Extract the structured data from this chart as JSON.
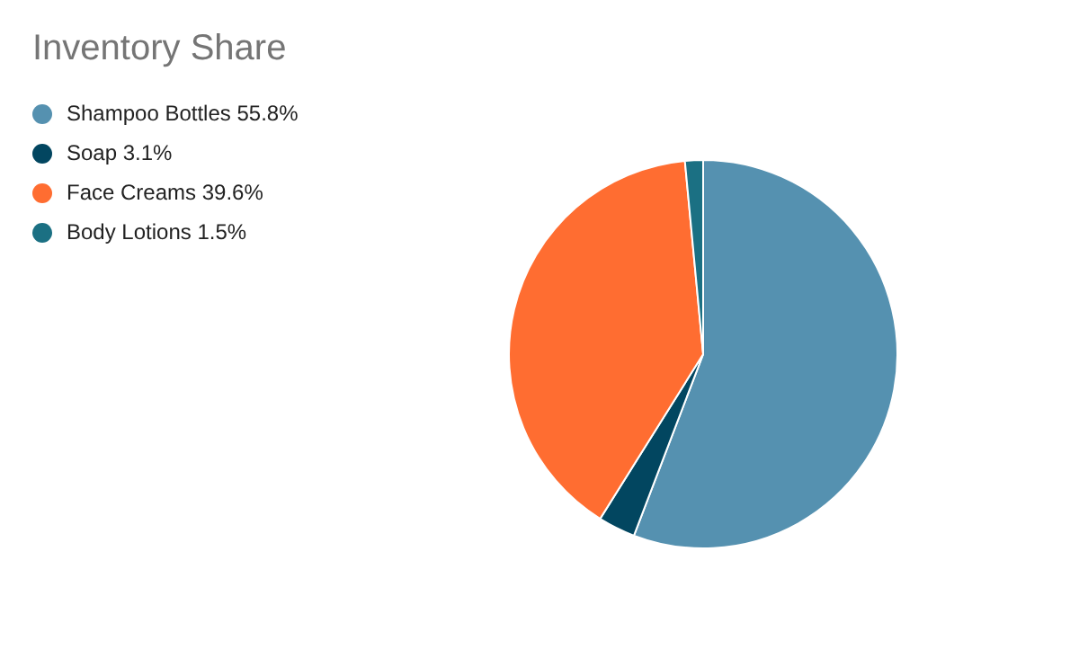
{
  "chart_data": {
    "type": "pie",
    "title": "Inventory Share",
    "categories": [
      "Shampoo Bottles 55.8%",
      "Soap 3.1%",
      "Face Creams 39.6%",
      "Body Lotions 1.5%"
    ],
    "values": [
      55.8,
      3.1,
      39.6,
      1.5
    ],
    "colors": [
      "#5591b0",
      "#024660",
      "#ff6d31",
      "#1b7083"
    ],
    "legend": "top left"
  }
}
